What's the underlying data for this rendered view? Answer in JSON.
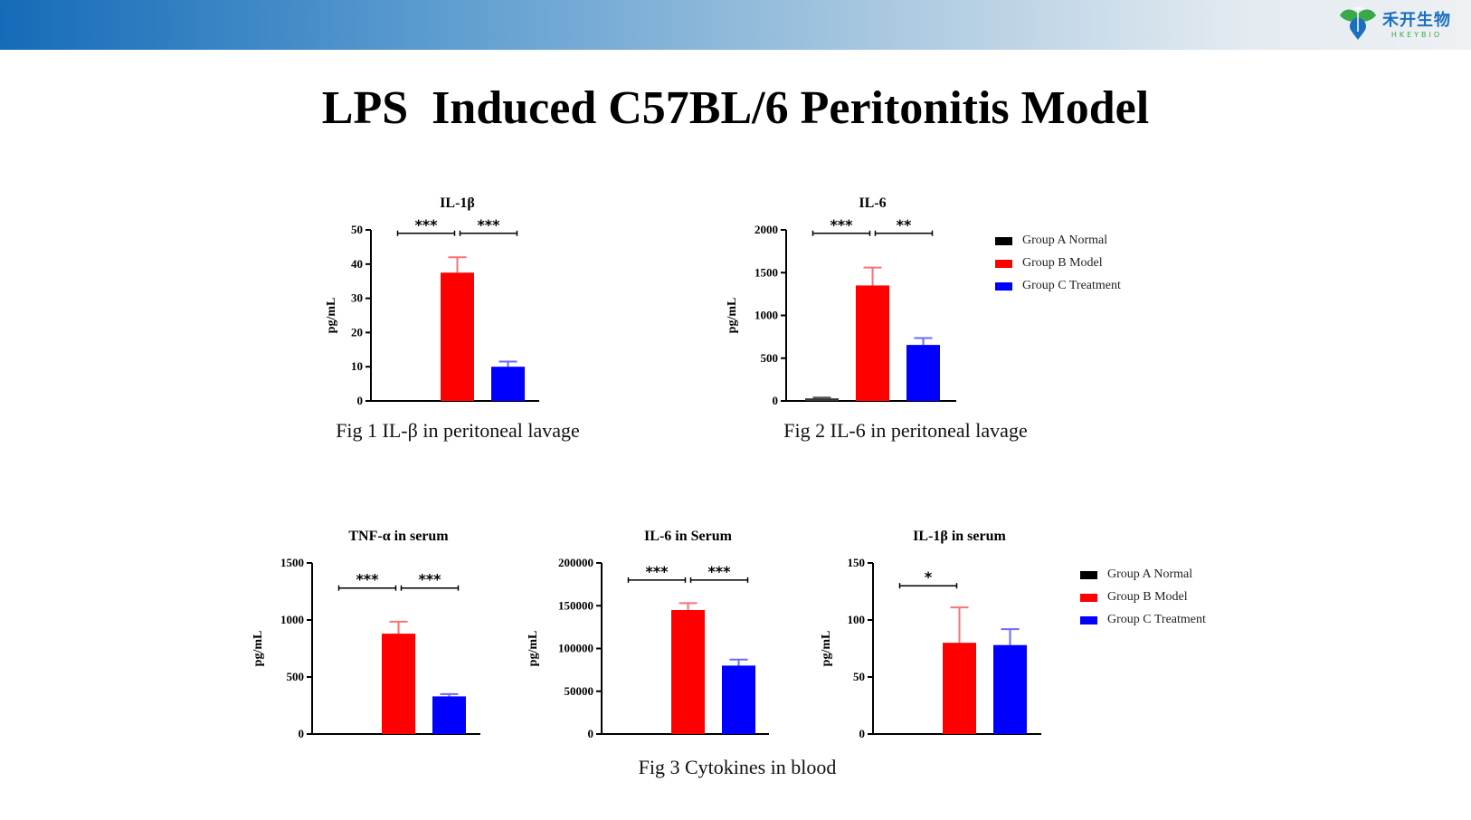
{
  "header": {
    "logo_cn": "禾开生物",
    "logo_en": "HKEYBIO"
  },
  "title": "LPS  Induced C57BL/6 Peritonitis Model",
  "captions": [
    "Fig 1 IL-β in peritoneal lavage",
    "Fig 2 IL-6 in peritoneal lavage",
    "Fig 3 Cytokines in blood"
  ],
  "colors": {
    "Group A Normal": "#000000",
    "Group B Model": "#ff0000",
    "Group C Treatment": "#0000ff"
  },
  "legends": [
    [
      "Group A Normal",
      "Group B Model",
      "Group C Treatment"
    ],
    [
      "Group A Normal",
      "Group B Model",
      "Group C Treatment"
    ]
  ],
  "chart_data": [
    {
      "type": "bar",
      "title": "IL-1β",
      "ylabel": "pg/mL",
      "ylim": [
        0,
        50
      ],
      "yticks": [
        0,
        10,
        20,
        30,
        40,
        50
      ],
      "categories": [
        "Group A Normal",
        "Group B Model",
        "Group C Treatment"
      ],
      "values": [
        0,
        37.5,
        10
      ],
      "error_upper": [
        0,
        42,
        11.5
      ],
      "significance": [
        {
          "pair": [
            0,
            1
          ],
          "label": "***",
          "level": 49
        },
        {
          "pair": [
            1,
            2
          ],
          "label": "***",
          "level": 49
        }
      ]
    },
    {
      "type": "bar",
      "title": "IL-6",
      "ylabel": "pg/mL",
      "ylim": [
        0,
        2000
      ],
      "yticks": [
        0,
        500,
        1000,
        1500,
        2000
      ],
      "categories": [
        "Group A Normal",
        "Group B Model",
        "Group C Treatment"
      ],
      "values": [
        30,
        1350,
        655
      ],
      "error_upper": [
        40,
        1560,
        735
      ],
      "significance": [
        {
          "pair": [
            0,
            1
          ],
          "label": "***",
          "level": 1960
        },
        {
          "pair": [
            1,
            2
          ],
          "label": "**",
          "level": 1960
        }
      ]
    },
    {
      "type": "bar",
      "title": "TNF-α in serum",
      "ylabel": "pg/mL",
      "ylim": [
        0,
        1500
      ],
      "yticks": [
        0,
        500,
        1000,
        1500
      ],
      "categories": [
        "Group A Normal",
        "Group B Model",
        "Group C Treatment"
      ],
      "values": [
        0,
        880,
        330
      ],
      "error_upper": [
        0,
        985,
        350
      ],
      "significance": [
        {
          "pair": [
            0,
            1
          ],
          "label": "***",
          "level": 1280
        },
        {
          "pair": [
            1,
            2
          ],
          "label": "***",
          "level": 1280
        }
      ]
    },
    {
      "type": "bar",
      "title": "IL-6 in Serum",
      "ylabel": "pg/mL",
      "ylim": [
        0,
        200000
      ],
      "yticks": [
        0,
        50000,
        100000,
        150000,
        200000
      ],
      "categories": [
        "Group A Normal",
        "Group B Model",
        "Group C Treatment"
      ],
      "values": [
        0,
        145000,
        80000
      ],
      "error_upper": [
        0,
        153000,
        87000
      ],
      "significance": [
        {
          "pair": [
            0,
            1
          ],
          "label": "***",
          "level": 180000
        },
        {
          "pair": [
            1,
            2
          ],
          "label": "***",
          "level": 180000
        }
      ]
    },
    {
      "type": "bar",
      "title": "IL-1β in serum",
      "ylabel": "pg/mL",
      "ylim": [
        0,
        150
      ],
      "yticks": [
        0,
        50,
        100,
        150
      ],
      "categories": [
        "Group A Normal",
        "Group B Model",
        "Group C Treatment"
      ],
      "values": [
        0,
        80,
        78
      ],
      "error_upper": [
        0,
        111,
        92
      ],
      "significance": [
        {
          "pair": [
            0,
            1
          ],
          "label": "*",
          "level": 130
        }
      ]
    }
  ]
}
